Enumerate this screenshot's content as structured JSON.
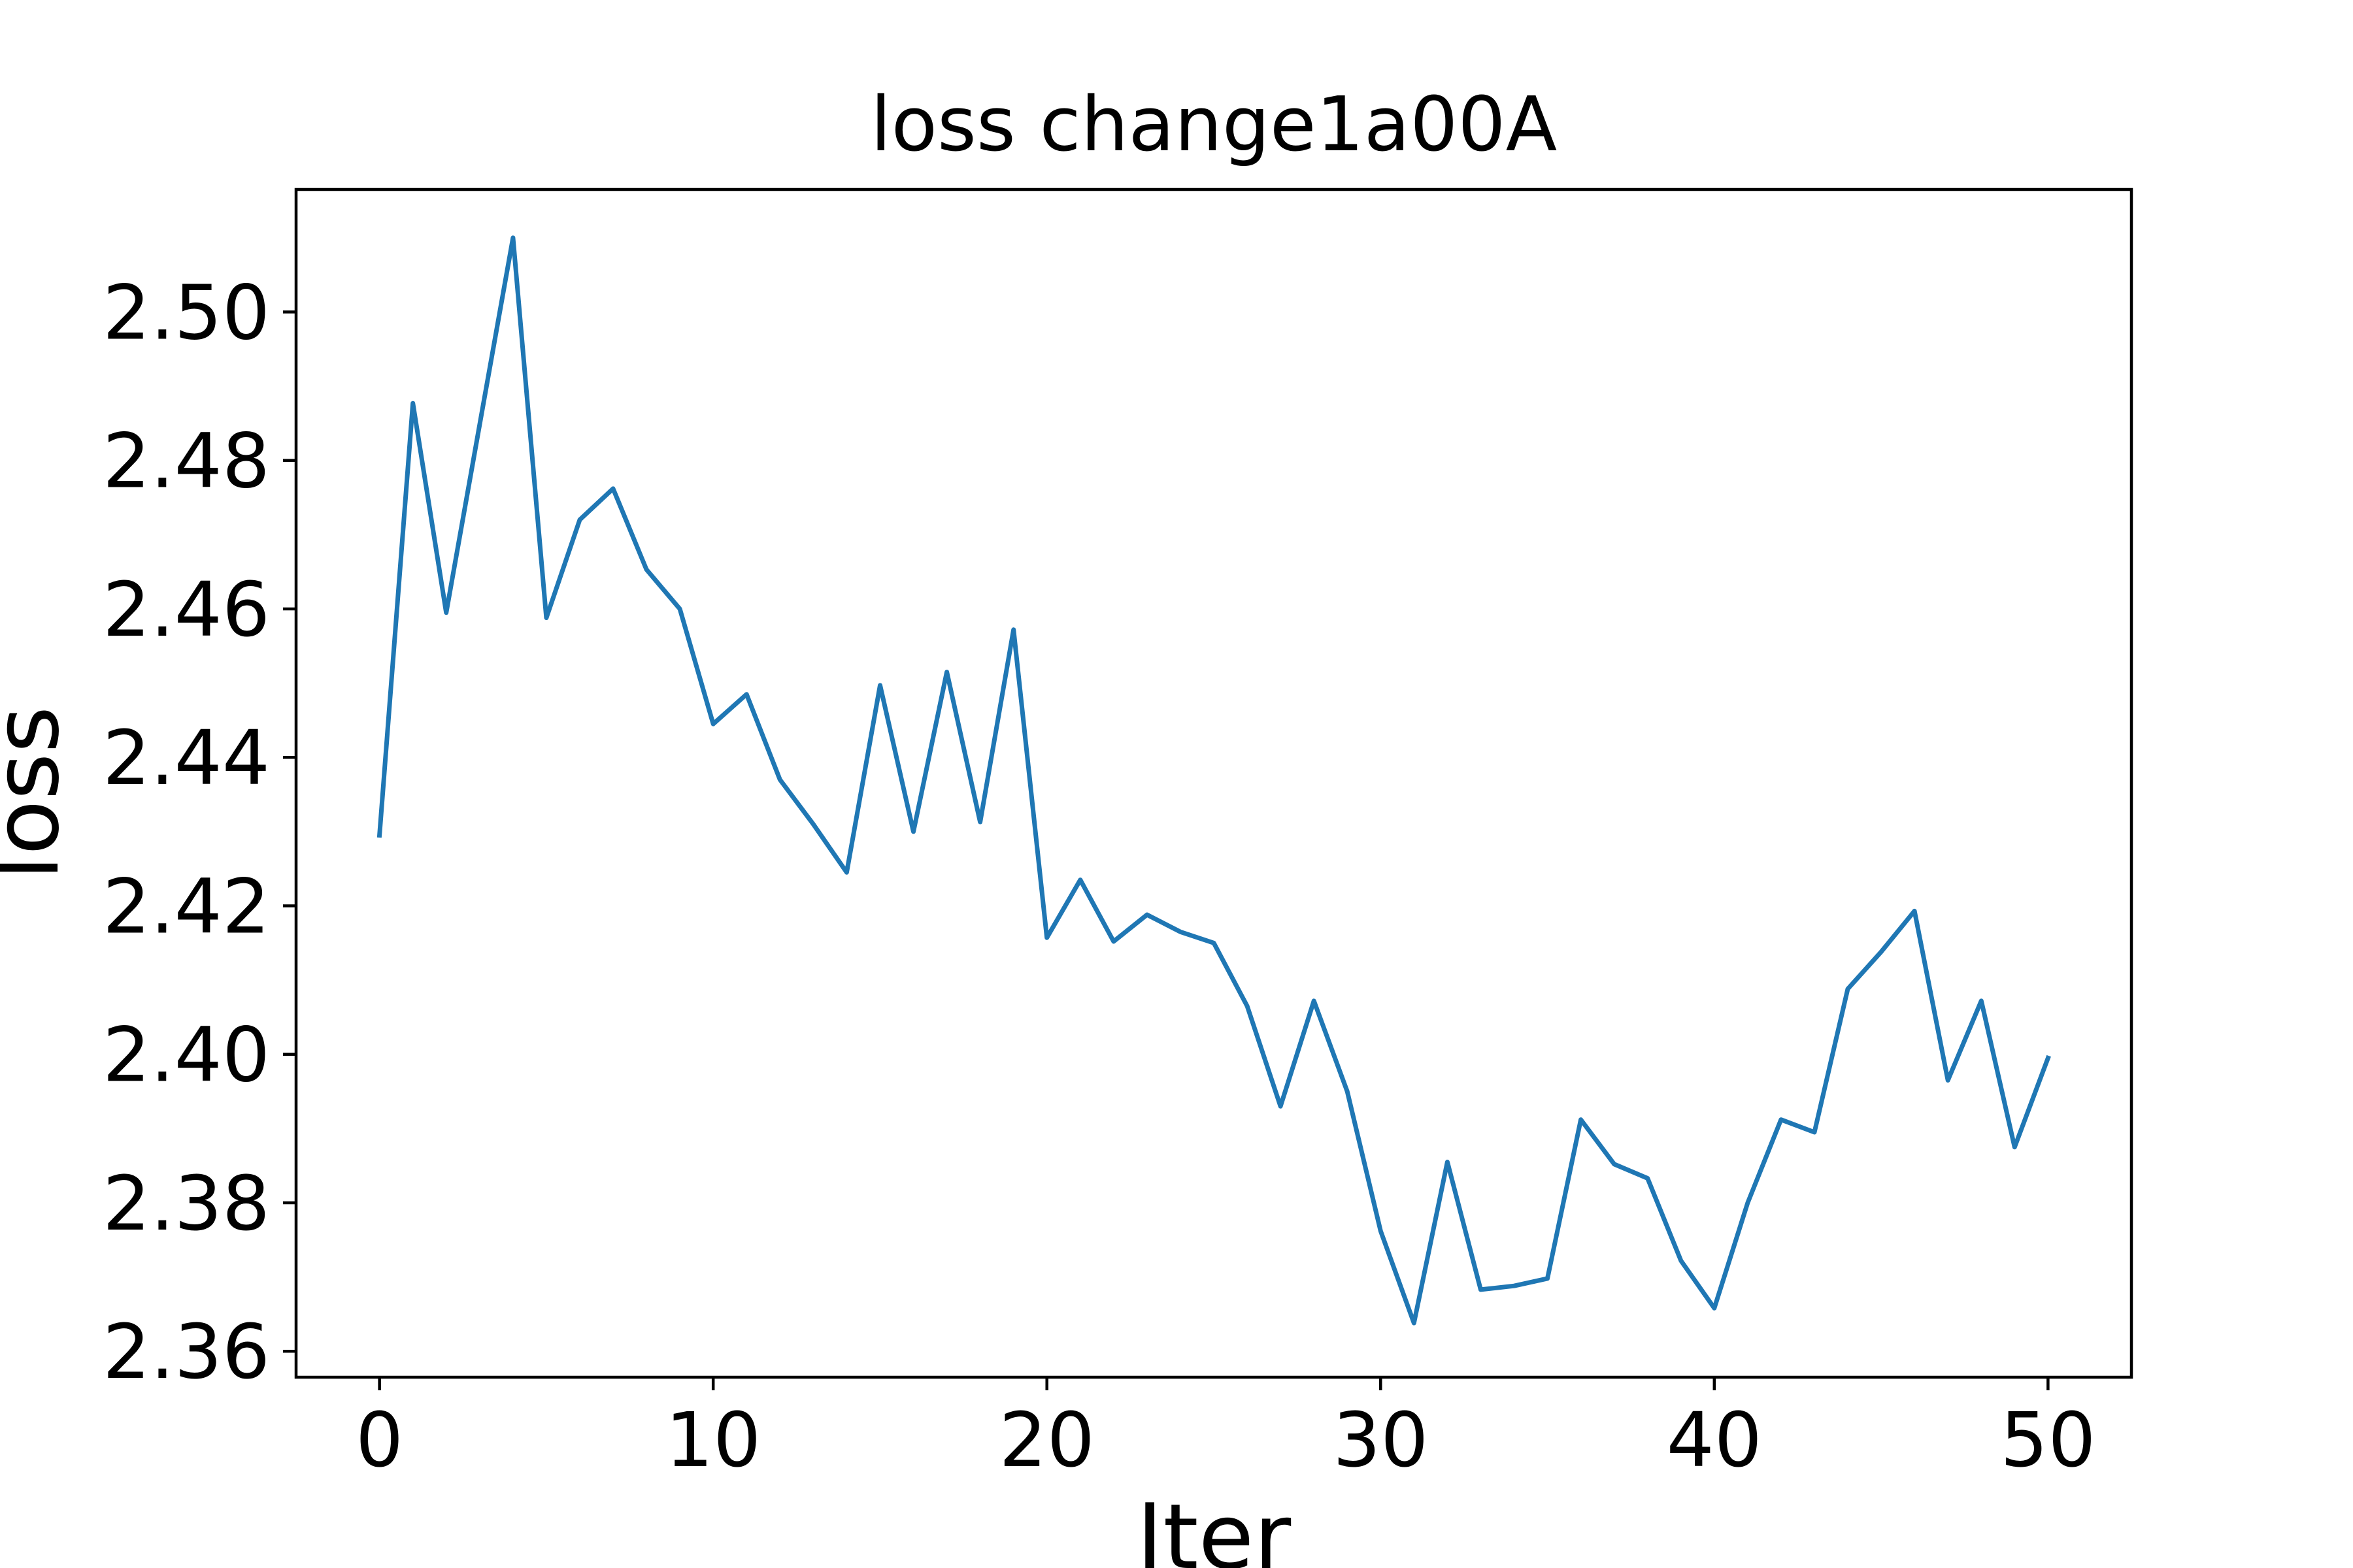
{
  "chart_data": {
    "type": "line",
    "title": "loss change1a00A",
    "xlabel": "Iter",
    "ylabel": "loss",
    "xlim": [
      -2.5,
      52.5
    ],
    "ylim": [
      2.3565,
      2.5165
    ],
    "xticks": [
      0,
      10,
      20,
      30,
      40,
      50
    ],
    "xtick_labels": [
      "0",
      "10",
      "20",
      "30",
      "40",
      "50"
    ],
    "yticks": [
      2.36,
      2.38,
      2.4,
      2.42,
      2.44,
      2.46,
      2.48,
      2.5
    ],
    "ytick_labels": [
      "2.36",
      "2.38",
      "2.40",
      "2.42",
      "2.44",
      "2.46",
      "2.48",
      "2.50"
    ],
    "grid": false,
    "line_color": "#1f77b4",
    "series": [
      {
        "name": "",
        "x": [
          0,
          1,
          2,
          3,
          4,
          5,
          6,
          7,
          8,
          9,
          10,
          11,
          12,
          13,
          14,
          15,
          16,
          17,
          18,
          19,
          20,
          21,
          22,
          23,
          24,
          25,
          26,
          27,
          28,
          29,
          30,
          31,
          32,
          33,
          34,
          35,
          36,
          37,
          38,
          39,
          40,
          41,
          42,
          43,
          44,
          45,
          46,
          47,
          48,
          49,
          50
        ],
        "y": [
          2.4295,
          2.4877,
          2.4595,
          2.4848,
          2.51,
          2.4588,
          2.472,
          2.4762,
          2.4653,
          2.46,
          2.4445,
          2.4485,
          2.437,
          2.431,
          2.4245,
          2.4497,
          2.43,
          2.4515,
          2.4313,
          2.4572,
          2.4157,
          2.4235,
          2.4152,
          2.4188,
          2.4165,
          2.415,
          2.4065,
          2.393,
          2.4072,
          2.395,
          2.3762,
          2.3638,
          2.3855,
          2.3683,
          2.3688,
          2.3698,
          2.3912,
          2.3852,
          2.3833,
          2.3722,
          2.3658,
          2.38,
          2.3912,
          2.3895,
          2.4088,
          2.4138,
          2.4193,
          2.3965,
          2.4072,
          2.3875,
          2.3995
        ]
      }
    ]
  }
}
